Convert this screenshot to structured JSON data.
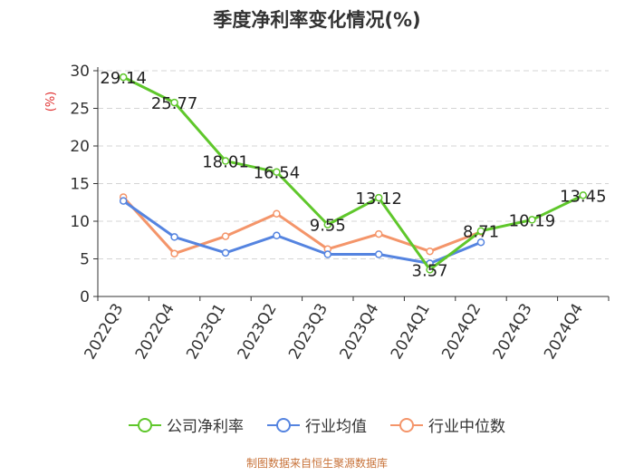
{
  "chart_data": {
    "type": "line",
    "title": "季度净利率变化情况(%)",
    "ylabel": "(%)",
    "xlabel": "",
    "ylim": [
      0,
      30
    ],
    "yticks": [
      0,
      5,
      10,
      15,
      20,
      25,
      30
    ],
    "grid": true,
    "legend_position": "bottom",
    "categories": [
      "2022Q3",
      "2022Q4",
      "2023Q1",
      "2023Q2",
      "2023Q3",
      "2023Q4",
      "2024Q1",
      "2024Q2",
      "2024Q3",
      "2024Q4"
    ],
    "series": [
      {
        "name": "公司净利率",
        "color": "#5fc72b",
        "values": [
          29.14,
          25.77,
          18.01,
          16.54,
          9.55,
          13.12,
          3.57,
          8.71,
          10.19,
          13.45
        ],
        "labels": [
          "29.14",
          "25.77",
          "18.01",
          "16.54",
          "9.55",
          "13.12",
          "3.57",
          "8.71",
          "10.19",
          "13.45"
        ]
      },
      {
        "name": "行业均值",
        "color": "#5584e0",
        "values": [
          12.7,
          7.9,
          5.8,
          8.1,
          5.6,
          5.6,
          4.4,
          7.2,
          null,
          null
        ]
      },
      {
        "name": "行业中位数",
        "color": "#f4956a",
        "values": [
          13.2,
          5.7,
          8.0,
          11.0,
          6.3,
          8.3,
          6.0,
          8.6,
          null,
          null
        ]
      }
    ]
  },
  "source_text": "制图数据来自恒生聚源数据库"
}
